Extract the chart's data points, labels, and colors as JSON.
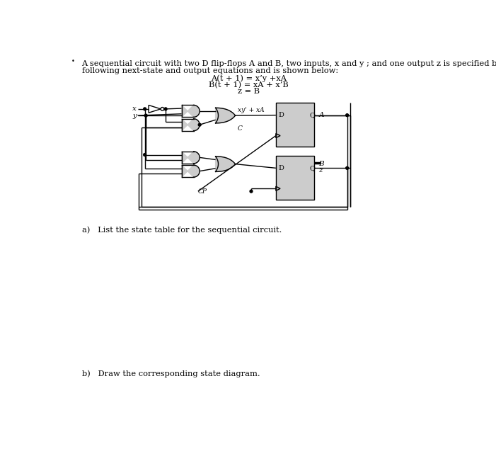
{
  "title_text": "A sequential circuit with two D flip-flops A and B, two inputs, x and y ; and one output z is specified by the",
  "title_line2": "following next-state and output equations and is shown below:",
  "eq1": "A(t + 1) = x’y +xA",
  "eq2": "B(t + 1) = xA + x’B",
  "eq3": "z = B",
  "part_a": "a)   List the state table for the sequential circuit.",
  "part_b": "b)   Draw the corresponding state diagram.",
  "bg_color": "#ffffff",
  "text_color": "#000000",
  "gate_fill": "#cccccc",
  "ff_fill": "#cccccc",
  "lw": 1.0
}
